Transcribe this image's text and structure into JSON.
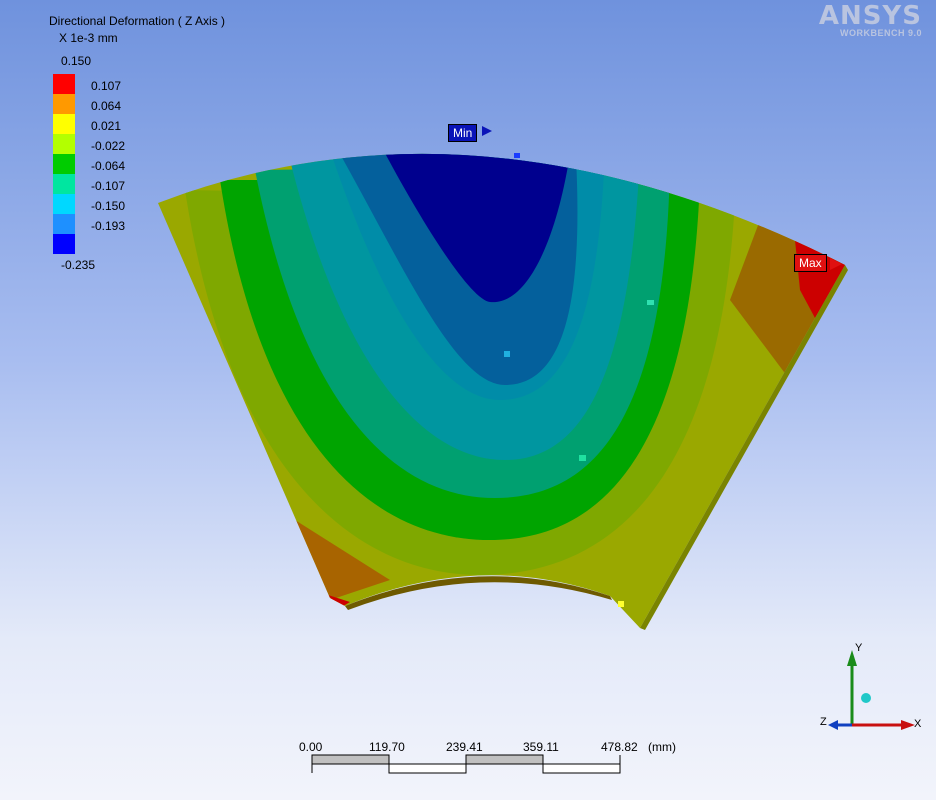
{
  "legend": {
    "title": "Directional Deformation ( Z Axis )",
    "units": "X 1e-3 mm",
    "max_label": "0.150",
    "min_label": "-0.235",
    "levels": [
      "0.107",
      "0.064",
      "0.021",
      "-0.022",
      "-0.064",
      "-0.107",
      "-0.150",
      "-0.193"
    ],
    "colors": [
      "#ff0000",
      "#ff9900",
      "#ffff00",
      "#b3ff00",
      "#00cc00",
      "#00e6a0",
      "#00d8ff",
      "#1e90ff",
      "#0000ff"
    ]
  },
  "logo": {
    "brand": "ANSYS",
    "product": "WORKBENCH 9.0"
  },
  "markers": {
    "min": "Min",
    "max": "Max"
  },
  "scale_bar": {
    "ticks": [
      "0.00",
      "119.70",
      "239.41",
      "359.11",
      "478.82"
    ],
    "unit": "(mm)"
  },
  "triad": {
    "x": "X",
    "y": "Y",
    "z": "Z"
  }
}
